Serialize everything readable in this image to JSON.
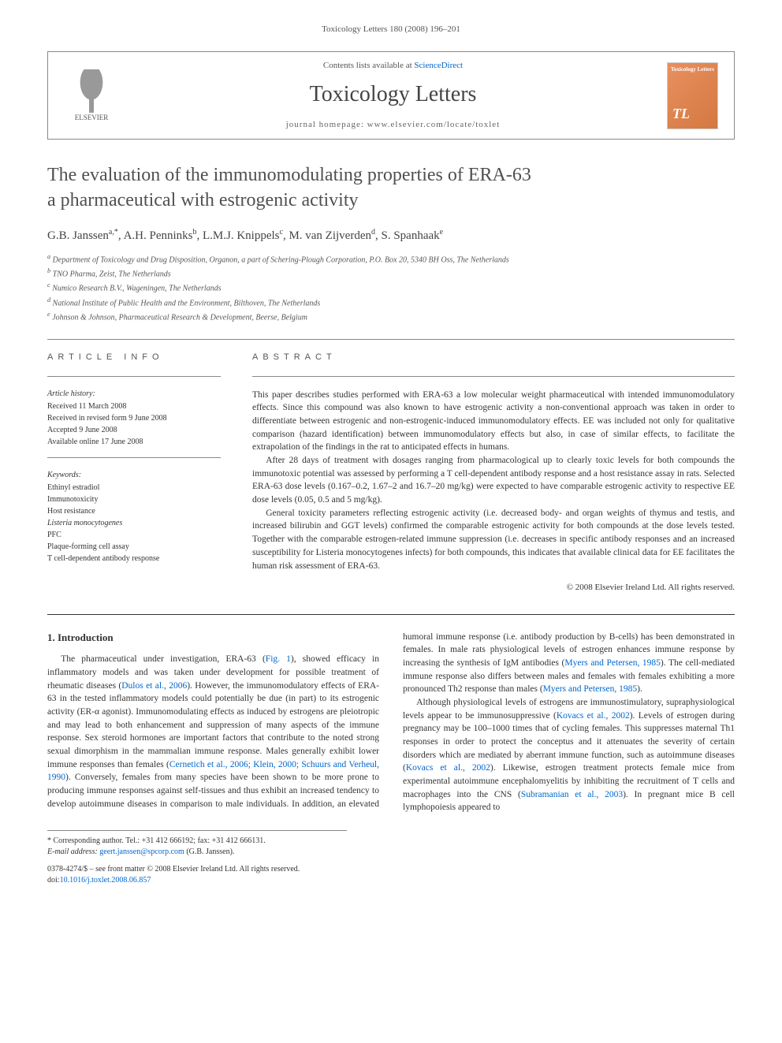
{
  "page_header": "Toxicology Letters 180 (2008) 196–201",
  "contents_box": {
    "contents_available": "Contents lists available at ",
    "sciencedirect": "ScienceDirect",
    "journal_name": "Toxicology Letters",
    "homepage_label": "journal homepage: ",
    "homepage_url": "www.elsevier.com/locate/toxlet",
    "publisher": "ELSEVIER",
    "cover_label": "Toxicology Letters",
    "cover_tl": "TL"
  },
  "title_line1": "The evaluation of the immunomodulating properties of ERA-63",
  "title_line2": "a pharmaceutical with estrogenic activity",
  "authors_html_parts": [
    {
      "name": "G.B. Janssen",
      "sup": "a,*"
    },
    {
      "name": "A.H. Penninks",
      "sup": "b"
    },
    {
      "name": "L.M.J. Knippels",
      "sup": "c"
    },
    {
      "name": "M. van Zijverden",
      "sup": "d"
    },
    {
      "name": "S. Spanhaak",
      "sup": "e"
    }
  ],
  "affiliations": [
    {
      "sup": "a",
      "text": "Department of Toxicology and Drug Disposition, Organon, a part of Schering-Plough Corporation, P.O. Box 20, 5340 BH Oss, The Netherlands"
    },
    {
      "sup": "b",
      "text": "TNO Pharma, Zeist, The Netherlands"
    },
    {
      "sup": "c",
      "text": "Numico Research B.V., Wageningen, The Netherlands"
    },
    {
      "sup": "d",
      "text": "National Institute of Public Health and the Environment, Bilthoven, The Netherlands"
    },
    {
      "sup": "e",
      "text": "Johnson & Johnson, Pharmaceutical Research & Development, Beerse, Belgium"
    }
  ],
  "info_heading": "ARTICLE INFO",
  "abstract_heading": "ABSTRACT",
  "history": {
    "label": "Article history:",
    "items": [
      "Received 11 March 2008",
      "Received in revised form 9 June 2008",
      "Accepted 9 June 2008",
      "Available online 17 June 2008"
    ]
  },
  "keywords": {
    "label": "Keywords:",
    "items": [
      {
        "text": "Ethinyl estradiol",
        "italic": false
      },
      {
        "text": "Immunotoxicity",
        "italic": false
      },
      {
        "text": "Host resistance",
        "italic": false
      },
      {
        "text": "Listeria monocytogenes",
        "italic": true
      },
      {
        "text": "PFC",
        "italic": false
      },
      {
        "text": "Plaque-forming cell assay",
        "italic": false
      },
      {
        "text": "T cell-dependent antibody response",
        "italic": false
      }
    ]
  },
  "abstract_paragraphs": [
    "This paper describes studies performed with ERA-63 a low molecular weight pharmaceutical with intended immunomodulatory effects. Since this compound was also known to have estrogenic activity a non-conventional approach was taken in order to differentiate between estrogenic and non-estrogenic-induced immunomodulatory effects. EE was included not only for qualitative comparison (hazard identification) between immunomodulatory effects but also, in case of similar effects, to facilitate the extrapolation of the findings in the rat to anticipated effects in humans.",
    "After 28 days of treatment with dosages ranging from pharmacological up to clearly toxic levels for both compounds the immunotoxic potential was assessed by performing a T cell-dependent antibody response and a host resistance assay in rats. Selected ERA-63 dose levels (0.167–0.2, 1.67–2 and 16.7–20 mg/kg) were expected to have comparable estrogenic activity to respective EE dose levels (0.05, 0.5 and 5 mg/kg).",
    "General toxicity parameters reflecting estrogenic activity (i.e. decreased body- and organ weights of thymus and testis, and increased bilirubin and GGT levels) confirmed the comparable estrogenic activity for both compounds at the dose levels tested. Together with the comparable estrogen-related immune suppression (i.e. decreases in specific antibody responses and an increased susceptibility for Listeria monocytogenes infects) for both compounds, this indicates that available clinical data for EE facilitates the human risk assessment of ERA-63."
  ],
  "copyright": "© 2008 Elsevier Ireland Ltd. All rights reserved.",
  "intro_heading": "1.  Introduction",
  "intro_p1_a": "The pharmaceutical under investigation, ERA-63 (",
  "intro_fig1": "Fig. 1",
  "intro_p1_b": "), showed efficacy in inflammatory models and was taken under development for possible treatment of rheumatic diseases (",
  "intro_ref1": "Dulos et al., 2006",
  "intro_p1_c": "). However, the immunomodulatory effects of ERA-63 in the tested inflammatory models could potentially be due (in part) to its estrogenic activity (ER-α agonist). Immunomodulating effects as induced by estrogens are pleiotropic and may lead to both enhancement and suppression of many aspects of the immune response. Sex steroid hormones are important factors that contribute to the noted strong sexual dimorphism in the mammalian immune response. Males generally exhibit lower immune responses than females (",
  "intro_ref2": "Cernetich et al., 2006; Klein, 2000; Schuurs and Verheul, 1990",
  "intro_p1_d": "). Conversely, females from many species have been shown to be more prone to producing immune responses against self-tissues ",
  "intro_p1_e": "and thus exhibit an increased tendency to develop autoimmune diseases in comparison to male individuals. In addition, an elevated humoral immune response (i.e. antibody production by B-cells) has been demonstrated in females. In male rats physiological levels of estrogen enhances immune response by increasing the synthesis of IgM antibodies (",
  "intro_ref3": "Myers and Petersen, 1985",
  "intro_p1_f": "). The cell-mediated immune response also differs between males and females with females exhibiting a more pronounced Th2 response than males (",
  "intro_ref4": "Myers and Petersen, 1985",
  "intro_p1_g": ").",
  "intro_p2_a": "Although physiological levels of estrogens are immunostimulatory, supraphysiological levels appear to be immunosuppressive (",
  "intro_ref5": "Kovacs et al., 2002",
  "intro_p2_b": "). Levels of estrogen during pregnancy may be 100–1000 times that of cycling females. This suppresses maternal Th1 responses in order to protect the conceptus and it attenuates the severity of certain disorders which are mediated by aberrant immune function, such as autoimmune diseases (",
  "intro_ref6": "Kovacs et al., 2002",
  "intro_p2_c": "). Likewise, estrogen treatment protects female mice from experimental autoimmune encephalomyelitis by inhibiting the recruitment of T cells and macrophages into the CNS (",
  "intro_ref7": "Subramanian et al., 2003",
  "intro_p2_d": "). In pregnant mice B cell lymphopoiesis appeared to",
  "corr": {
    "label": "* Corresponding author. Tel.: +31 412 666192; fax: +31 412 666131.",
    "email_label": "E-mail address: ",
    "email": "geert.janssen@spcorp.com",
    "email_suffix": " (G.B. Janssen)."
  },
  "doi": {
    "line1": "0378-4274/$ – see front matter © 2008 Elsevier Ireland Ltd. All rights reserved.",
    "doi_label": "doi:",
    "doi_value": "10.1016/j.toxlet.2008.06.857"
  },
  "colors": {
    "link": "#0066cc",
    "text": "#333333",
    "heading": "#505050",
    "rule": "#888888",
    "cover_bg": "#e89060"
  }
}
